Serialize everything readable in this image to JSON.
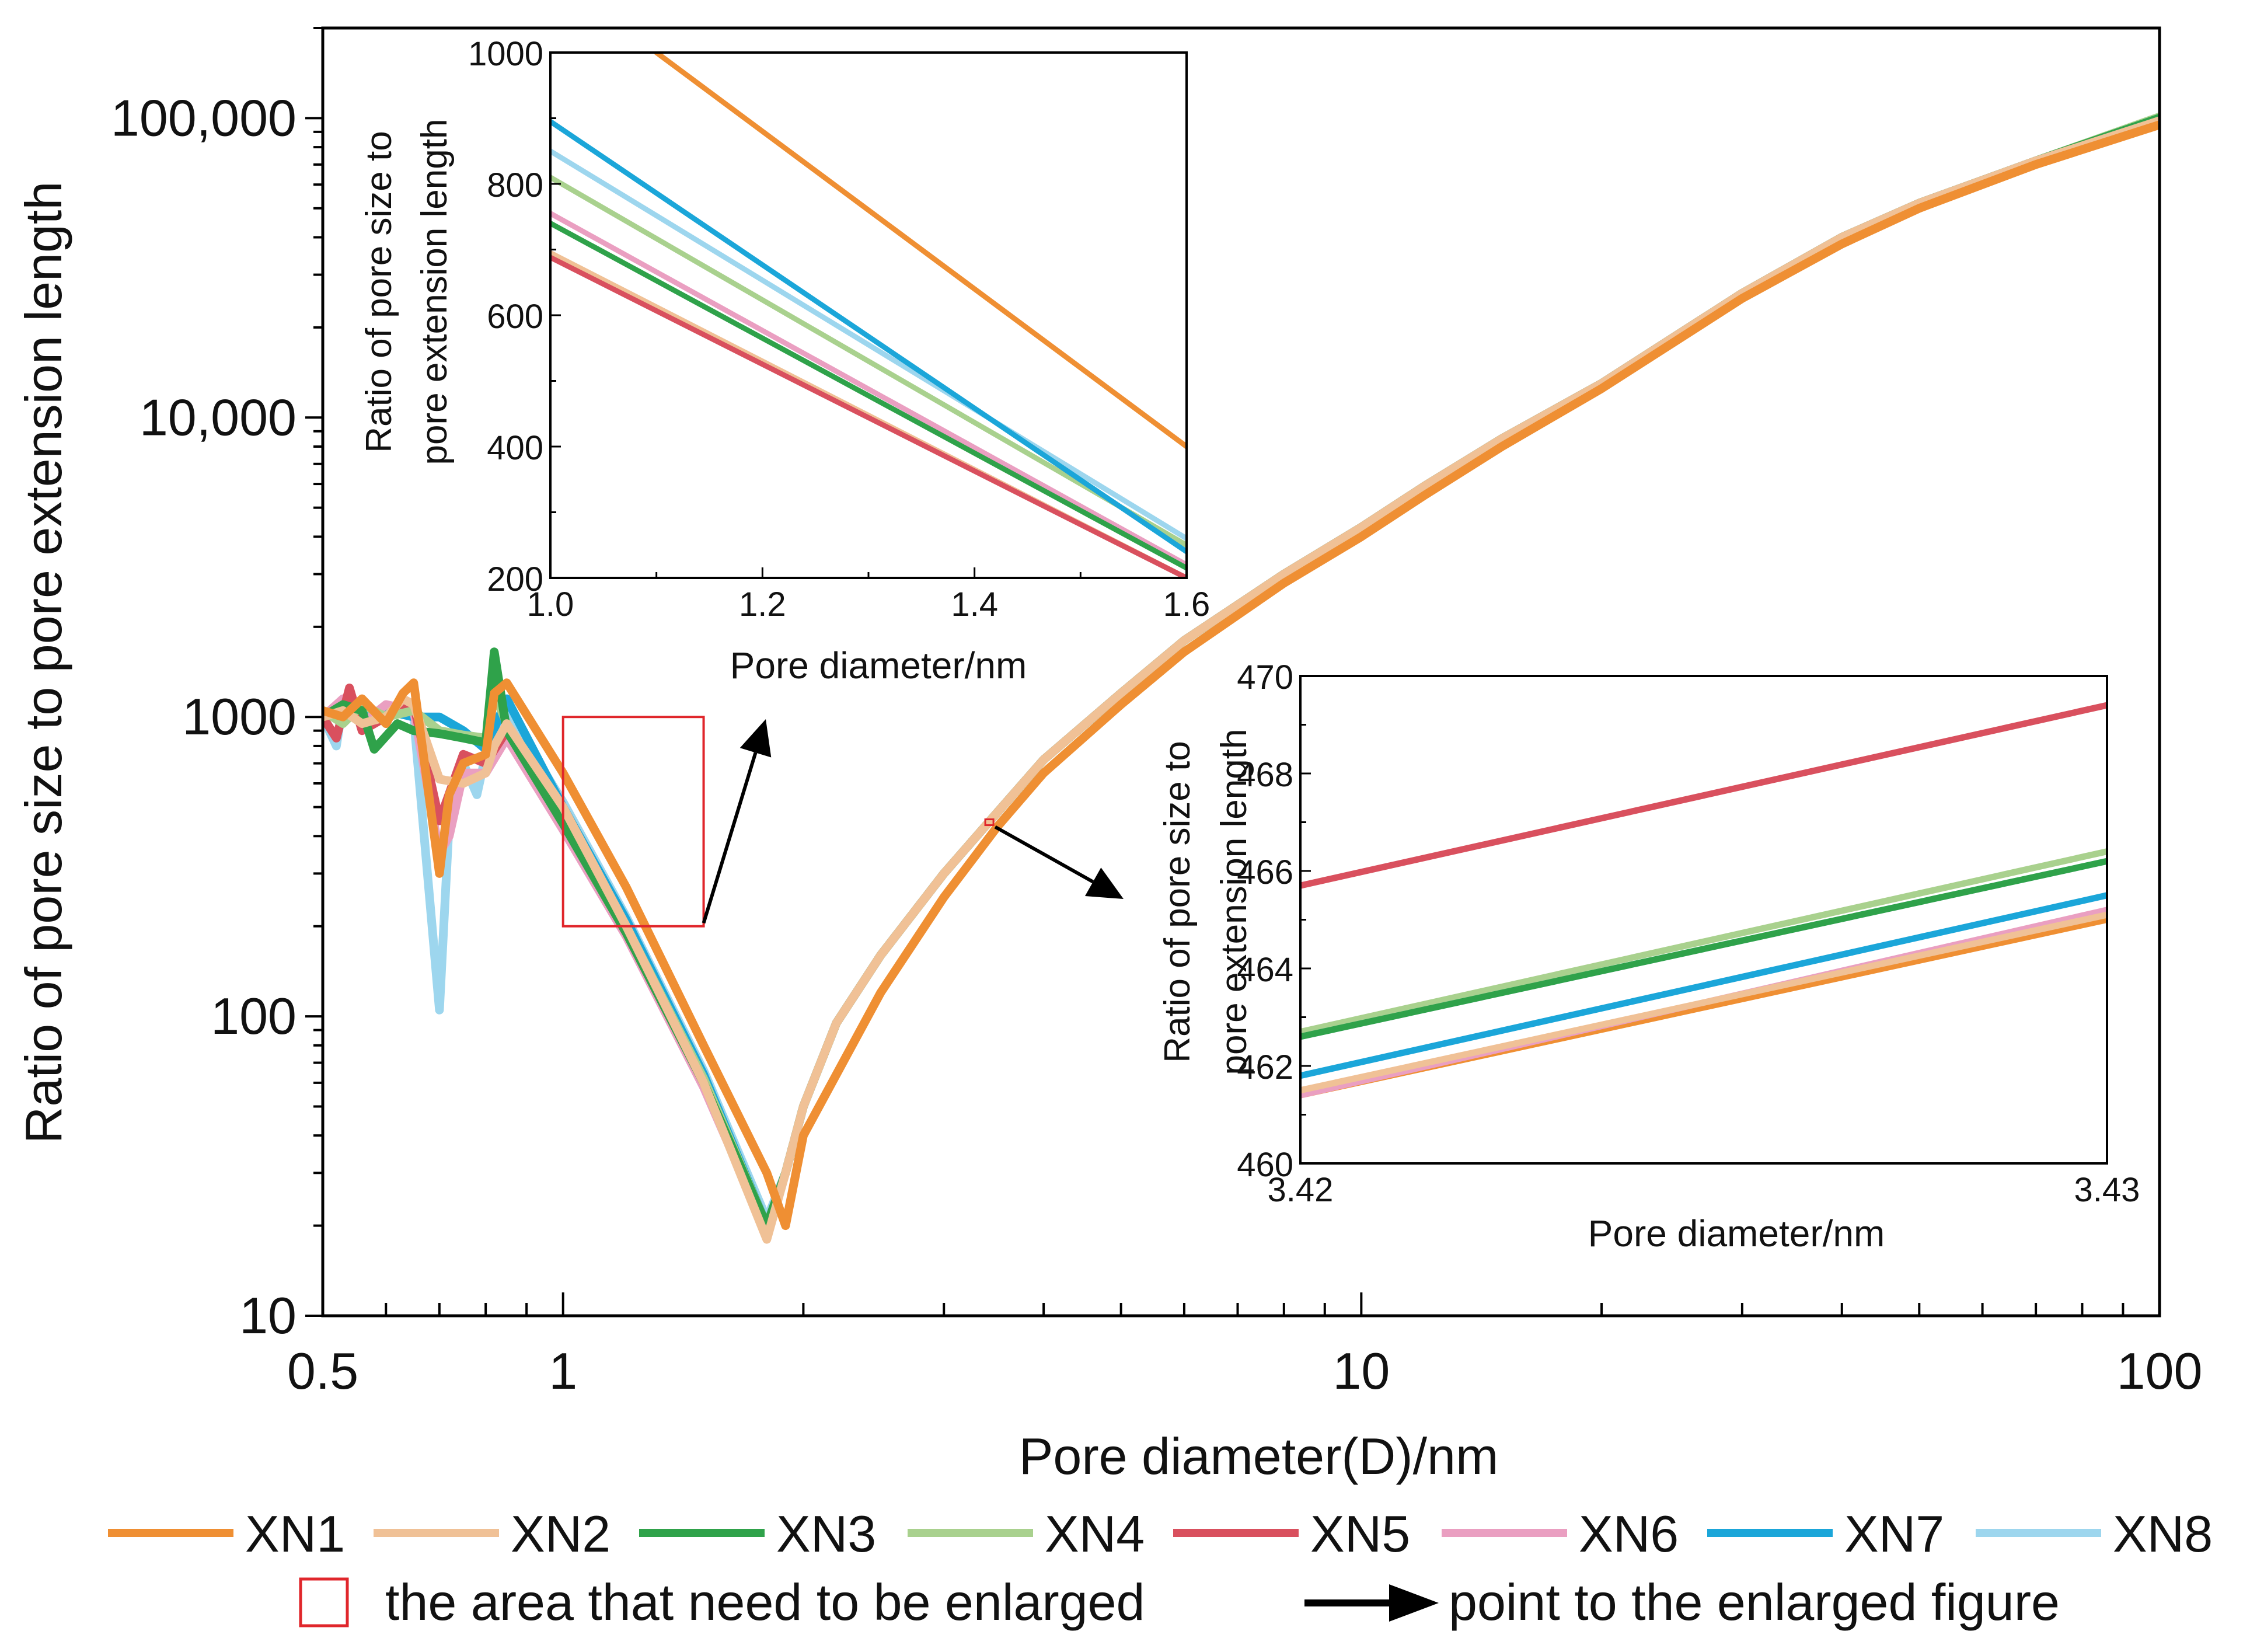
{
  "colors": {
    "XN1": "#ef8f33",
    "XN2": "#f0c196",
    "XN3": "#2fa24a",
    "XN4": "#a9d18e",
    "XN5": "#d9505e",
    "XN6": "#ea9fc1",
    "XN7": "#1ba6d9",
    "XN8": "#9dd6ee",
    "enlarge_box": "#e0262b",
    "arrow": "#000000"
  },
  "chart_data": [
    {
      "id": "main",
      "type": "line",
      "title": "",
      "xlabel": "Pore diameter(D)/nm",
      "ylabel": "Ratio of pore size to pore extension length",
      "xscale": "log",
      "yscale": "log",
      "xlim": [
        0.5,
        100
      ],
      "ylim": [
        10,
        200000
      ],
      "x_ticks": [
        0.5,
        1,
        10,
        100
      ],
      "x_tick_labels": [
        "0.5",
        "1",
        "10",
        "100"
      ],
      "y_ticks": [
        10,
        100,
        1000,
        10000,
        100000
      ],
      "y_tick_labels": [
        "10",
        "100",
        "1000",
        "10,000",
        "100,000"
      ],
      "legend_position": "bottom",
      "series": [
        {
          "name": "XN1",
          "x": [
            0.5,
            0.53,
            0.56,
            0.6,
            0.63,
            0.65,
            0.7,
            0.72,
            0.75,
            0.8,
            0.82,
            0.85,
            1.0,
            1.2,
            1.5,
            1.8,
            1.9,
            2.0,
            2.5,
            3.0,
            3.5,
            4.0,
            5.0,
            6.0,
            8.0,
            10.0,
            12.0,
            15.0,
            20.0,
            30.0,
            40.0,
            50.0,
            70.0,
            100.0
          ],
          "y": [
            1050,
            1000,
            1150,
            950,
            1200,
            1300,
            300,
            550,
            700,
            750,
            1200,
            1300,
            650,
            270,
            80,
            30,
            20,
            40,
            120,
            250,
            430,
            650,
            1100,
            1650,
            2800,
            4000,
            5500,
            8000,
            12500,
            25000,
            38000,
            50000,
            70000,
            95000
          ]
        },
        {
          "name": "XN2",
          "x": [
            0.5,
            0.53,
            0.56,
            0.6,
            0.63,
            0.65,
            0.7,
            0.75,
            0.8,
            0.82,
            0.85,
            1.0,
            1.2,
            1.5,
            1.8,
            1.9,
            2.0,
            2.2,
            2.5,
            3.0,
            3.5,
            4.0,
            5.0,
            6.0,
            8.0,
            10.0,
            12.0,
            15.0,
            20.0,
            30.0,
            40.0,
            50.0,
            70.0,
            100.0
          ],
          "y": [
            1000,
            1050,
            950,
            1000,
            1150,
            1100,
            620,
            600,
            650,
            800,
            950,
            500,
            200,
            60,
            18,
            30,
            50,
            95,
            160,
            300,
            480,
            720,
            1200,
            1800,
            3000,
            4300,
            5900,
            8500,
            13000,
            26000,
            40000,
            52000,
            72000,
            98000
          ]
        },
        {
          "name": "XN3",
          "x": [
            0.5,
            0.53,
            0.56,
            0.58,
            0.62,
            0.65,
            0.7,
            0.75,
            0.8,
            0.82,
            0.85,
            1.0,
            1.2,
            1.5,
            1.8,
            1.9,
            2.0,
            2.2,
            2.5,
            3.0,
            3.5,
            4.0,
            5.0,
            6.0,
            8.0,
            10.0,
            12.0,
            15.0,
            20.0,
            30.0,
            40.0,
            50.0,
            70.0,
            100.0
          ],
          "y": [
            1000,
            1100,
            1050,
            780,
            950,
            900,
            880,
            850,
            820,
            1650,
            900,
            440,
            190,
            60,
            20,
            30,
            50,
            95,
            160,
            300,
            480,
            720,
            1200,
            1800,
            3000,
            4300,
            5900,
            8500,
            13000,
            26000,
            40000,
            52000,
            72000,
            100000
          ]
        },
        {
          "name": "XN4",
          "x": [
            0.5,
            0.53,
            0.56,
            0.6,
            0.65,
            0.7,
            0.75,
            0.8,
            0.82,
            0.85,
            1.0,
            1.2,
            1.5,
            1.8,
            1.9,
            2.0,
            2.2,
            2.5,
            3.0,
            3.5,
            4.0,
            5.0,
            6.0,
            8.0,
            10.0,
            12.0,
            15.0,
            20.0,
            30.0,
            40.0,
            50.0,
            70.0,
            100.0
          ],
          "y": [
            1050,
            950,
            1100,
            1000,
            1050,
            900,
            870,
            850,
            1200,
            950,
            480,
            200,
            62,
            20,
            30,
            50,
            95,
            160,
            300,
            480,
            720,
            1200,
            1800,
            3000,
            4300,
            5900,
            8500,
            13000,
            26000,
            40000,
            52000,
            72000,
            101000
          ]
        },
        {
          "name": "XN5",
          "x": [
            0.5,
            0.52,
            0.54,
            0.56,
            0.6,
            0.65,
            0.7,
            0.75,
            0.8,
            0.85,
            1.0,
            1.2,
            1.5,
            1.8,
            1.9,
            2.0,
            2.2,
            2.5,
            3.0,
            3.5,
            4.0,
            5.0,
            6.0,
            8.0,
            10.0,
            12.0,
            15.0,
            20.0,
            30.0,
            40.0,
            50.0,
            70.0,
            100.0
          ],
          "y": [
            1000,
            850,
            1250,
            900,
            1000,
            1100,
            450,
            750,
            700,
            900,
            450,
            190,
            60,
            19,
            30,
            50,
            95,
            160,
            300,
            480,
            720,
            1200,
            1800,
            3000,
            4300,
            5900,
            8500,
            13000,
            26000,
            40000,
            52000,
            72000,
            98000
          ]
        },
        {
          "name": "XN6",
          "x": [
            0.5,
            0.53,
            0.56,
            0.6,
            0.65,
            0.7,
            0.72,
            0.75,
            0.8,
            0.85,
            1.0,
            1.2,
            1.5,
            1.8,
            1.9,
            2.0,
            2.2,
            2.5,
            3.0,
            3.5,
            4.0,
            5.0,
            6.0,
            8.0,
            10.0,
            12.0,
            15.0,
            20.0,
            30.0,
            40.0,
            50.0,
            70.0,
            100.0
          ],
          "y": [
            1000,
            1150,
            950,
            1100,
            1050,
            350,
            400,
            650,
            650,
            850,
            420,
            185,
            58,
            19,
            30,
            50,
            95,
            160,
            300,
            480,
            720,
            1200,
            1800,
            3000,
            4300,
            5900,
            8500,
            13000,
            26000,
            40000,
            52000,
            72000,
            97000
          ]
        },
        {
          "name": "XN7",
          "x": [
            0.5,
            0.53,
            0.56,
            0.6,
            0.65,
            0.7,
            0.75,
            0.8,
            0.85,
            1.0,
            1.2,
            1.5,
            1.8,
            1.9,
            2.0,
            2.2,
            2.5,
            3.0,
            3.5,
            4.0,
            5.0,
            6.0,
            8.0,
            10.0,
            12.0,
            15.0,
            20.0,
            30.0,
            40.0,
            50.0,
            70.0,
            100.0
          ],
          "y": [
            1000,
            1050,
            1000,
            1050,
            1000,
            1000,
            900,
            780,
            1150,
            500,
            210,
            64,
            20,
            30,
            50,
            95,
            160,
            300,
            480,
            720,
            1200,
            1800,
            3000,
            4300,
            5900,
            8500,
            13000,
            26000,
            40000,
            52000,
            72000,
            99000
          ]
        },
        {
          "name": "XN8",
          "x": [
            0.5,
            0.52,
            0.53,
            0.56,
            0.6,
            0.65,
            0.7,
            0.72,
            0.75,
            0.78,
            0.8,
            0.85,
            1.0,
            1.2,
            1.5,
            1.8,
            1.9,
            2.0,
            2.2,
            2.5,
            3.0,
            3.5,
            4.0,
            5.0,
            6.0,
            8.0,
            10.0,
            12.0,
            15.0,
            20.0,
            30.0,
            40.0,
            50.0,
            70.0,
            100.0
          ],
          "y": [
            1000,
            800,
            1100,
            1000,
            1050,
            1000,
            105,
            450,
            700,
            550,
            750,
            1050,
            520,
            215,
            66,
            21,
            30,
            50,
            95,
            160,
            300,
            480,
            720,
            1200,
            1800,
            3000,
            4300,
            5900,
            8500,
            13000,
            26000,
            40000,
            52000,
            72000,
            99000
          ]
        }
      ]
    },
    {
      "id": "inset_small",
      "type": "line",
      "title": "",
      "xlabel": "Pore diameter/nm",
      "ylabel_lines": [
        "Ratio of pore size to",
        "pore extension length"
      ],
      "xscale": "linear",
      "yscale": "linear",
      "xlim": [
        1.0,
        1.6
      ],
      "ylim": [
        200,
        1000
      ],
      "x_ticks": [
        1.0,
        1.2,
        1.4,
        1.6
      ],
      "x_tick_labels": [
        "1.0",
        "1.2",
        "1.4",
        "1.6"
      ],
      "y_ticks": [
        200,
        400,
        600,
        800,
        1000
      ],
      "y_tick_labels": [
        "200",
        "400",
        "600",
        "800",
        "1000"
      ],
      "series": [
        {
          "name": "XN1",
          "x": [
            1.1,
            1.6
          ],
          "y": [
            1000,
            400
          ]
        },
        {
          "name": "XN2",
          "x": [
            1.0,
            1.6
          ],
          "y": [
            695,
            200
          ]
        },
        {
          "name": "XN3",
          "x": [
            1.0,
            1.6
          ],
          "y": [
            740,
            215
          ]
        },
        {
          "name": "XN4",
          "x": [
            1.0,
            1.6
          ],
          "y": [
            810,
            250
          ]
        },
        {
          "name": "XN5",
          "x": [
            1.0,
            1.6
          ],
          "y": [
            688,
            200
          ]
        },
        {
          "name": "XN6",
          "x": [
            1.0,
            1.6
          ],
          "y": [
            755,
            220
          ]
        },
        {
          "name": "XN7",
          "x": [
            1.0,
            1.6
          ],
          "y": [
            895,
            240
          ]
        },
        {
          "name": "XN8",
          "x": [
            1.0,
            1.6
          ],
          "y": [
            850,
            260
          ]
        }
      ]
    },
    {
      "id": "inset_large",
      "type": "line",
      "title": "",
      "xlabel": "Pore diameter/nm",
      "ylabel_lines": [
        "Ratio of pore size to",
        "pore extension length"
      ],
      "xscale": "linear",
      "yscale": "linear",
      "xlim": [
        3.42,
        3.43
      ],
      "ylim": [
        460,
        470
      ],
      "x_ticks": [
        3.42,
        3.43
      ],
      "x_tick_labels": [
        "3.42",
        "3.43"
      ],
      "y_ticks": [
        460,
        462,
        464,
        466,
        468,
        470
      ],
      "y_tick_labels": [
        "460",
        "462",
        "464",
        "466",
        "468",
        "470"
      ],
      "series": [
        {
          "name": "XN1",
          "x": [
            3.42,
            3.43
          ],
          "y": [
            461.4,
            465.0
          ]
        },
        {
          "name": "XN2",
          "x": [
            3.42,
            3.43
          ],
          "y": [
            461.5,
            465.1
          ]
        },
        {
          "name": "XN3",
          "x": [
            3.42,
            3.43
          ],
          "y": [
            462.6,
            466.2
          ]
        },
        {
          "name": "XN4",
          "x": [
            3.42,
            3.43
          ],
          "y": [
            462.7,
            466.4
          ]
        },
        {
          "name": "XN5",
          "x": [
            3.42,
            3.43
          ],
          "y": [
            465.7,
            469.4
          ]
        },
        {
          "name": "XN6",
          "x": [
            3.42,
            3.43
          ],
          "y": [
            461.4,
            465.2
          ]
        },
        {
          "name": "XN7",
          "x": [
            3.42,
            3.43
          ],
          "y": [
            461.8,
            465.5
          ]
        },
        {
          "name": "XN8",
          "x": [
            3.42,
            3.43
          ],
          "y": [
            462.6,
            466.2
          ]
        }
      ]
    }
  ],
  "annotations": {
    "enlarge_box_region": {
      "x": [
        1.0,
        1.5
      ],
      "y": [
        200,
        1000
      ]
    },
    "enlarge_point": {
      "x": 3.42,
      "y": 445
    }
  },
  "legend": {
    "items": [
      "XN1",
      "XN2",
      "XN3",
      "XN4",
      "XN5",
      "XN6",
      "XN7",
      "XN8"
    ],
    "box_text": "the area that need to be enlarged",
    "arrow_text": "point to the enlarged figure"
  }
}
